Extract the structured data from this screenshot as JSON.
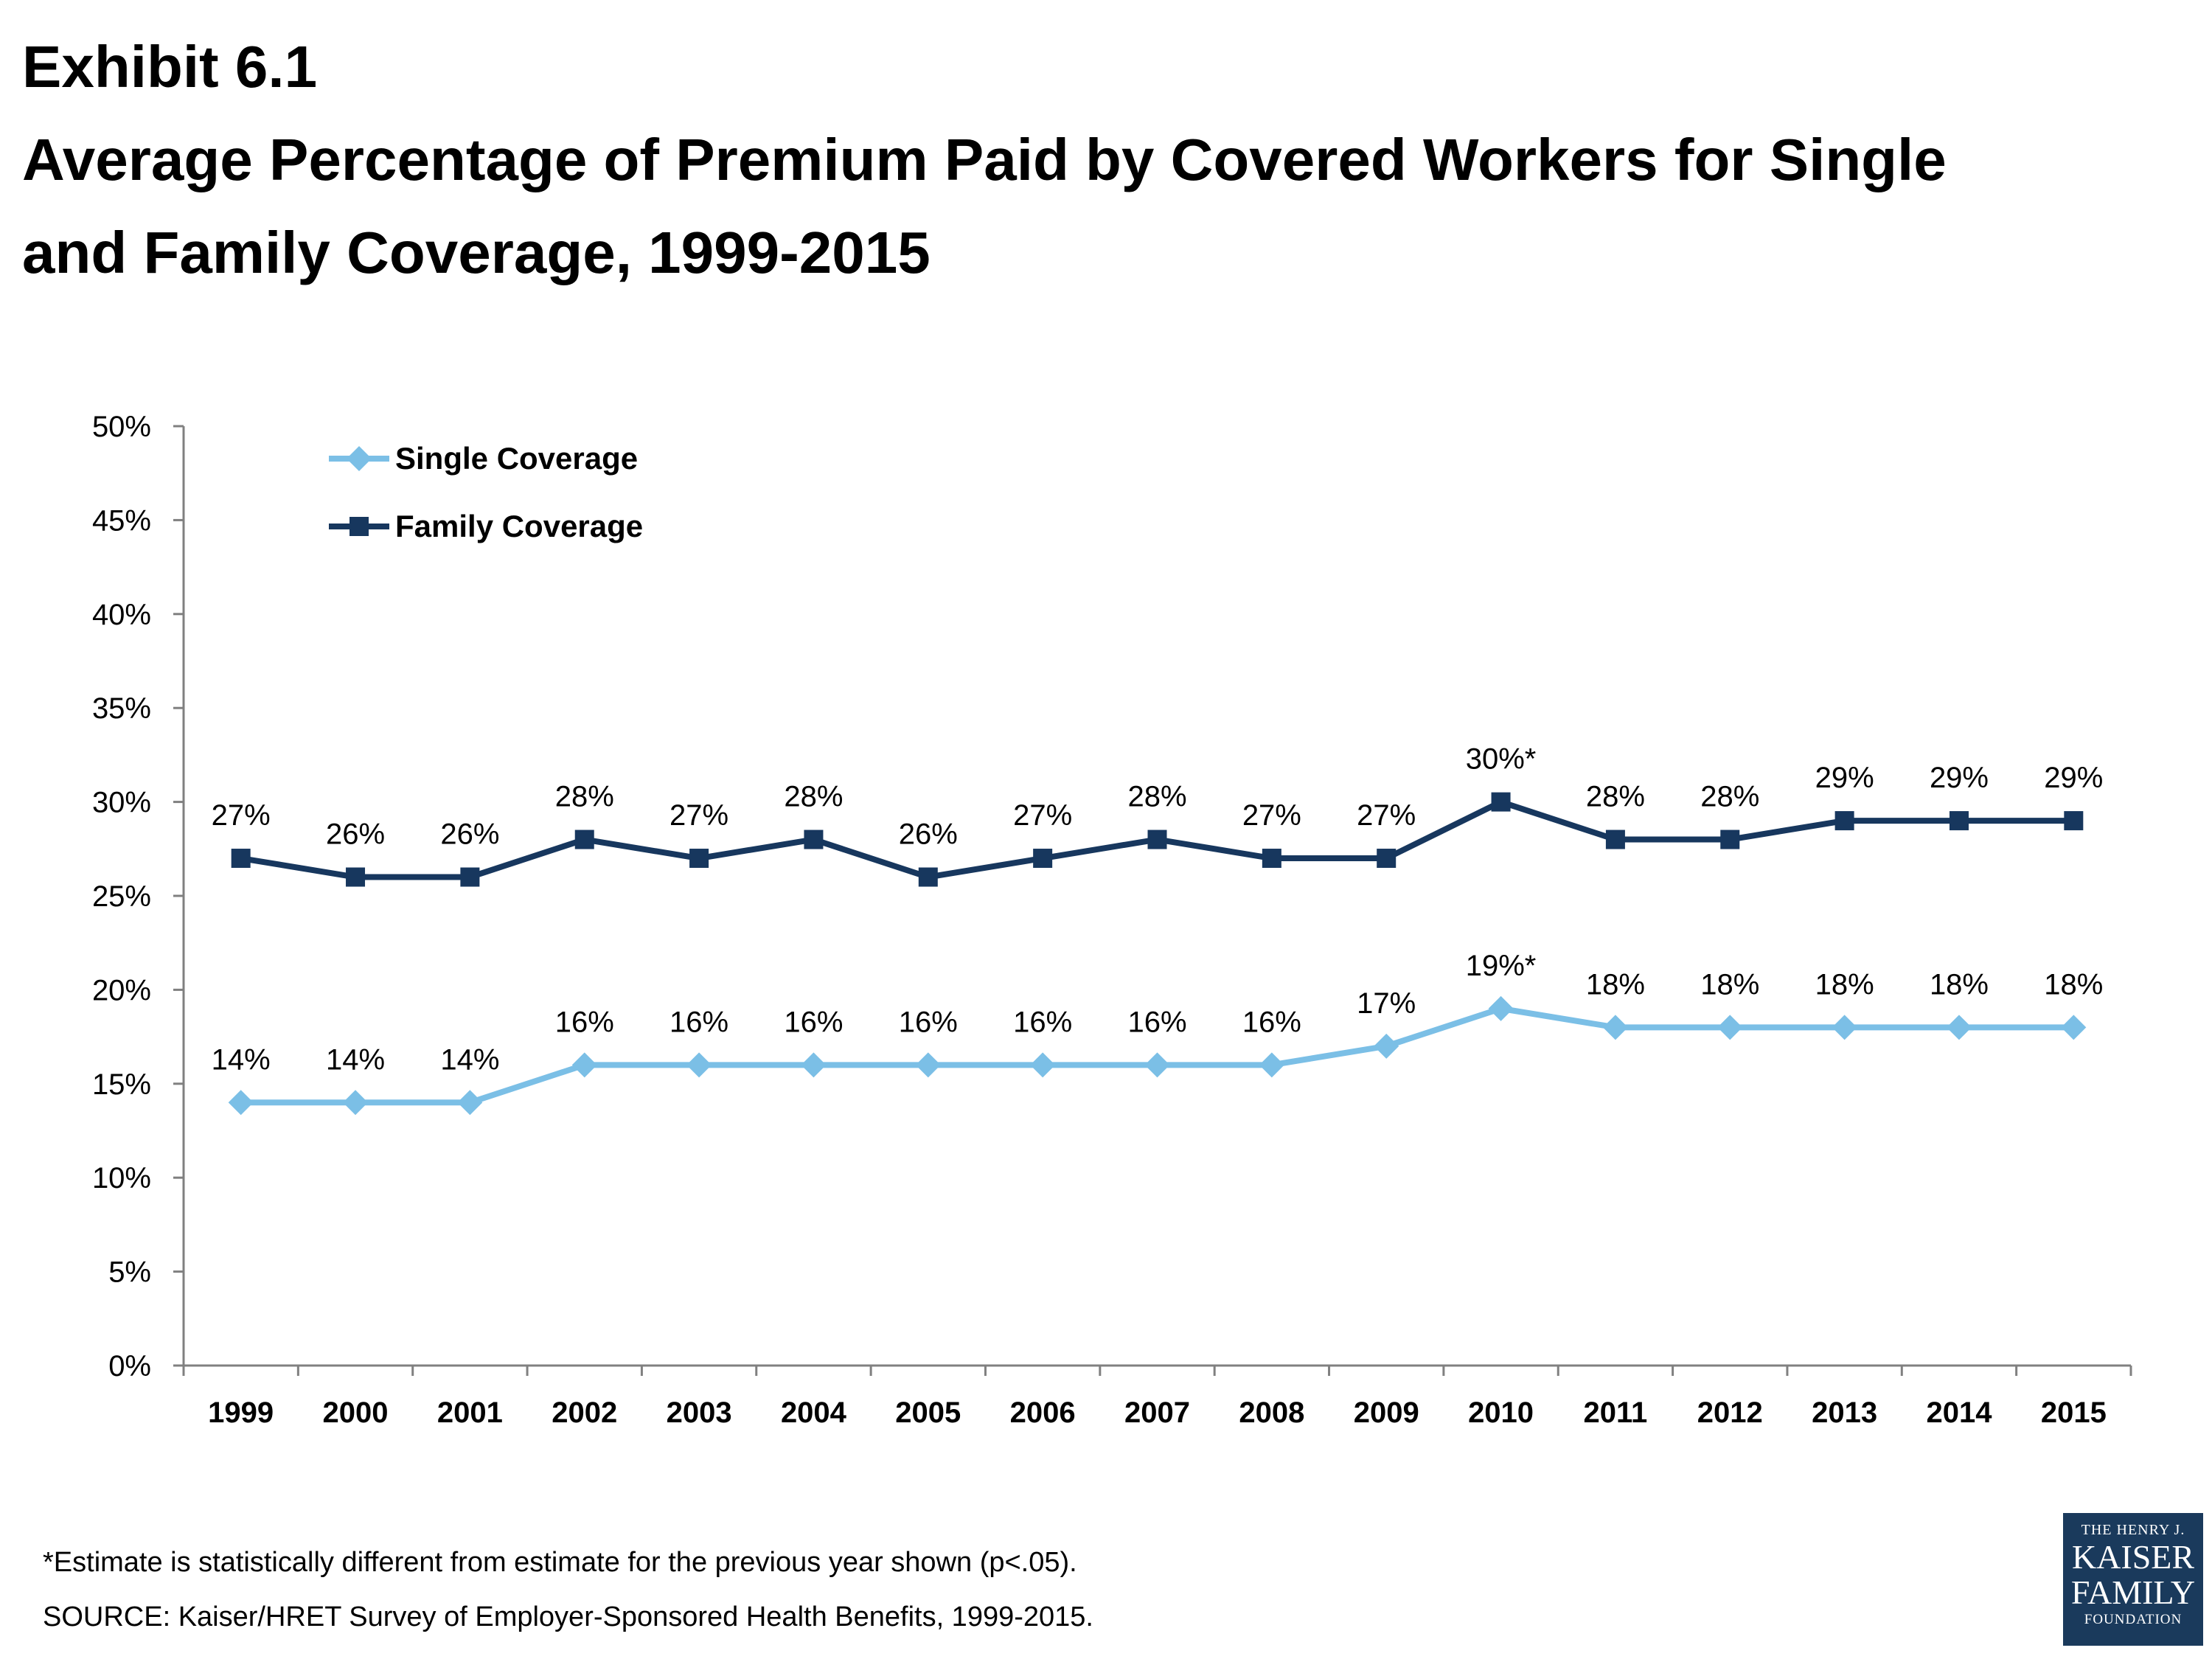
{
  "header": {
    "exhibit": "Exhibit 6.1",
    "title_line1": "Average Percentage of Premium Paid by Covered Workers for Single",
    "title_line2": "and Family Coverage, 1999-2015"
  },
  "chart_data": {
    "type": "line",
    "title": "Average Percentage of Premium Paid by Covered Workers for Single and Family Coverage, 1999-2015",
    "xlabel": "",
    "ylabel": "",
    "categories": [
      "1999",
      "2000",
      "2001",
      "2002",
      "2003",
      "2004",
      "2005",
      "2006",
      "2007",
      "2008",
      "2009",
      "2010",
      "2011",
      "2012",
      "2013",
      "2014",
      "2015"
    ],
    "ylim": [
      0,
      50
    ],
    "yticks": [
      "0%",
      "5%",
      "10%",
      "15%",
      "20%",
      "25%",
      "30%",
      "35%",
      "40%",
      "45%",
      "50%"
    ],
    "grid": false,
    "legend_position": "top-left",
    "series": [
      {
        "name": "Single Coverage",
        "color": "#7bbfe6",
        "marker": "diamond",
        "values": [
          14,
          14,
          14,
          16,
          16,
          16,
          16,
          16,
          16,
          16,
          17,
          19,
          18,
          18,
          18,
          18,
          18
        ],
        "labels": [
          "14%",
          "14%",
          "14%",
          "16%",
          "16%",
          "16%",
          "16%",
          "16%",
          "16%",
          "16%",
          "17%",
          "19%*",
          "18%",
          "18%",
          "18%",
          "18%",
          "18%"
        ]
      },
      {
        "name": "Family Coverage",
        "color": "#17375e",
        "marker": "square",
        "values": [
          27,
          26,
          26,
          28,
          27,
          28,
          26,
          27,
          28,
          27,
          27,
          30,
          28,
          28,
          29,
          29,
          29
        ],
        "labels": [
          "27%",
          "26%",
          "26%",
          "28%",
          "27%",
          "28%",
          "26%",
          "27%",
          "28%",
          "27%",
          "27%",
          "30%*",
          "28%",
          "28%",
          "29%",
          "29%",
          "29%"
        ]
      }
    ]
  },
  "footnotes": {
    "note": "*Estimate is statistically different from estimate for the previous year shown (p<.05).",
    "source": "SOURCE:  Kaiser/HRET Survey of Employer-Sponsored Health Benefits, 1999-2015."
  },
  "logo": {
    "line1": "THE HENRY J.",
    "line2": "KAISER",
    "line3": "FAMILY",
    "line4": "FOUNDATION"
  }
}
